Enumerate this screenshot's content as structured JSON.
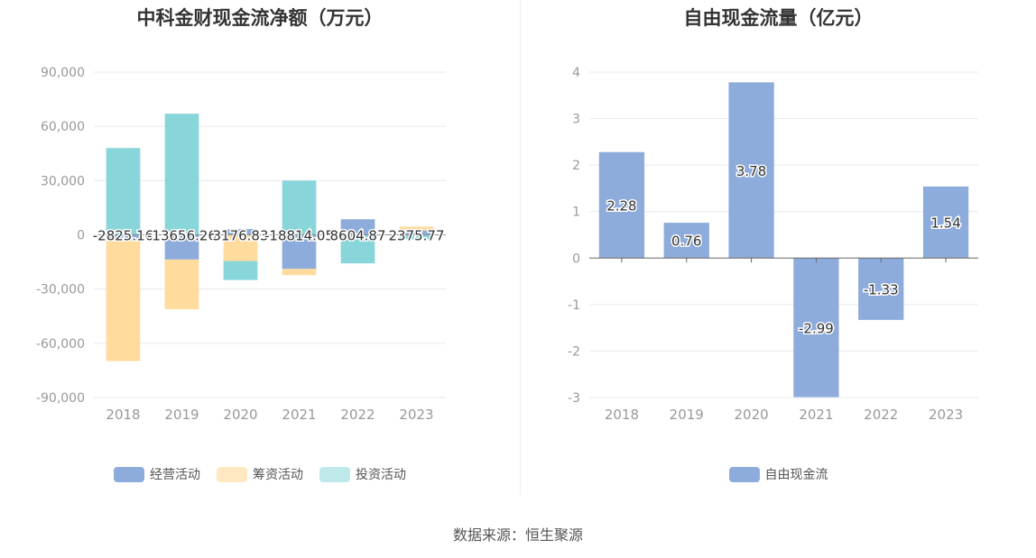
{
  "footer": {
    "source": "数据来源：恒生聚源"
  },
  "chart_data": [
    {
      "type": "bar",
      "stacked": true,
      "title": "中科金财现金流净额（万元）",
      "categories": [
        "2018",
        "2019",
        "2020",
        "2021",
        "2022",
        "2023"
      ],
      "series": [
        {
          "name": "经营活动",
          "values": [
            -2825.16,
            -13656.26,
            3176.83,
            -18814.05,
            8604.87,
            2375.77
          ]
        },
        {
          "name": "筹资活动",
          "values": [
            -67000,
            -27500,
            -14500,
            -3500,
            -300,
            2200
          ]
        },
        {
          "name": "投资活动",
          "values": [
            48000,
            67000,
            -10500,
            30000,
            -15500,
            -2500
          ]
        }
      ],
      "data_labels": [
        "-2825.16",
        "-13656.26",
        "3176.83",
        "-18814.05",
        "8604.87",
        "2375.77"
      ],
      "yticks": [
        90000,
        60000,
        30000,
        0,
        -30000,
        -60000,
        -90000
      ],
      "ytick_labels": [
        "90,000",
        "60,000",
        "30,000",
        "0",
        "-30,000",
        "-60,000",
        "-90,000"
      ],
      "ylim": [
        -90000,
        90000
      ],
      "colors": [
        "#8eacdb",
        "#ffdb9e",
        "#88d6d9"
      ],
      "legend_colors": [
        "#8eacdb",
        "#ffe8c2",
        "#bfe8ea"
      ],
      "xlabel": "",
      "ylabel": "",
      "legend": "bottom"
    },
    {
      "type": "bar",
      "title": "自由现金流量（亿元）",
      "categories": [
        "2018",
        "2019",
        "2020",
        "2021",
        "2022",
        "2023"
      ],
      "series": [
        {
          "name": "自由现金流",
          "values": [
            2.28,
            0.76,
            3.78,
            -2.99,
            -1.33,
            1.54
          ]
        }
      ],
      "data_labels": [
        "2.28",
        "0.76",
        "3.78",
        "-2.99",
        "-1.33",
        "1.54"
      ],
      "yticks": [
        4,
        3,
        2,
        1,
        0,
        -1,
        -2,
        -3
      ],
      "ytick_labels": [
        "4",
        "3",
        "2",
        "1",
        "0",
        "-1",
        "-2",
        "-3"
      ],
      "ylim": [
        -3,
        4
      ],
      "colors": [
        "#8eacdb"
      ],
      "legend_colors": [
        "#8eacdb"
      ],
      "xlabel": "",
      "ylabel": "",
      "legend": "bottom"
    }
  ]
}
